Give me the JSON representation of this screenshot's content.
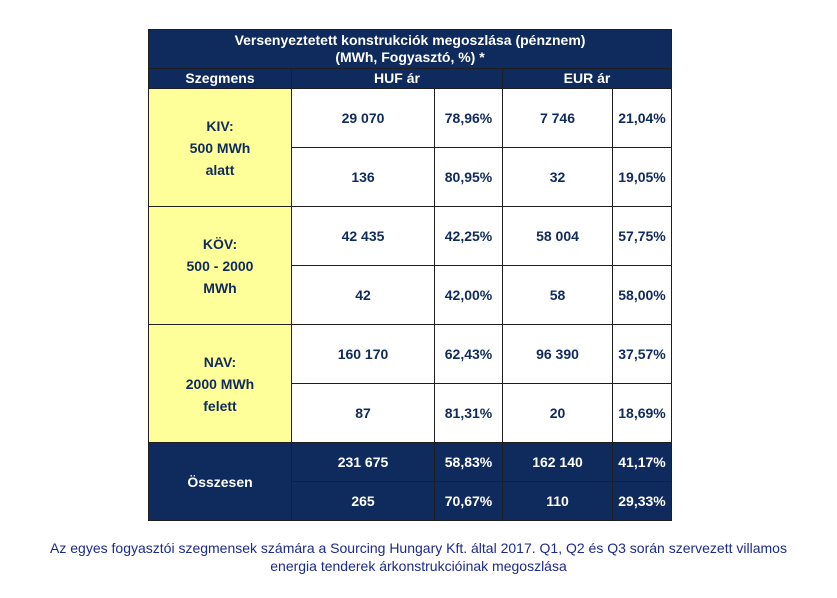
{
  "table": {
    "title_line1": "Versenyeztetett konstrukciók megoszlása (pénznem)",
    "title_line2": "(MWh, Fogyasztó, %) *",
    "headers": {
      "segment": "Szegmens",
      "huf": "HUF ár",
      "eur": "EUR ár"
    },
    "segments": [
      {
        "label_lines": [
          "KIV:",
          "500 MWh",
          "alatt"
        ],
        "rows": [
          {
            "huf_value": "29 070",
            "huf_pct": "78,96%",
            "eur_value": "7 746",
            "eur_pct": "21,04%"
          },
          {
            "huf_value": "136",
            "huf_pct": "80,95%",
            "eur_value": "32",
            "eur_pct": "19,05%"
          }
        ]
      },
      {
        "label_lines": [
          "KÖV:",
          "500 - 2000",
          "MWh"
        ],
        "rows": [
          {
            "huf_value": "42 435",
            "huf_pct": "42,25%",
            "eur_value": "58 004",
            "eur_pct": "57,75%"
          },
          {
            "huf_value": "42",
            "huf_pct": "42,00%",
            "eur_value": "58",
            "eur_pct": "58,00%"
          }
        ]
      },
      {
        "label_lines": [
          "NAV:",
          "2000 MWh",
          "felett"
        ],
        "rows": [
          {
            "huf_value": "160 170",
            "huf_pct": "62,43%",
            "eur_value": "96 390",
            "eur_pct": "37,57%"
          },
          {
            "huf_value": "87",
            "huf_pct": "81,31%",
            "eur_value": "20",
            "eur_pct": "18,69%"
          }
        ]
      }
    ],
    "total": {
      "label": "Összesen",
      "rows": [
        {
          "huf_value": "231 675",
          "huf_pct": "58,83%",
          "eur_value": "162 140",
          "eur_pct": "41,17%"
        },
        {
          "huf_value": "265",
          "huf_pct": "70,67%",
          "eur_value": "110",
          "eur_pct": "29,33%"
        }
      ]
    }
  },
  "caption": {
    "line1": "Az egyes fogyasztói szegmensek számára a Sourcing Hungary Kft. által 2017. Q1, Q2 és Q3 során szervezett villamos",
    "line2": "energia tenderek árkonstrukcióinak megoszlása"
  },
  "colors": {
    "navy": "#0f2a5c",
    "segment_fill": "#ffff99",
    "caption_text": "#1c2a8c"
  }
}
